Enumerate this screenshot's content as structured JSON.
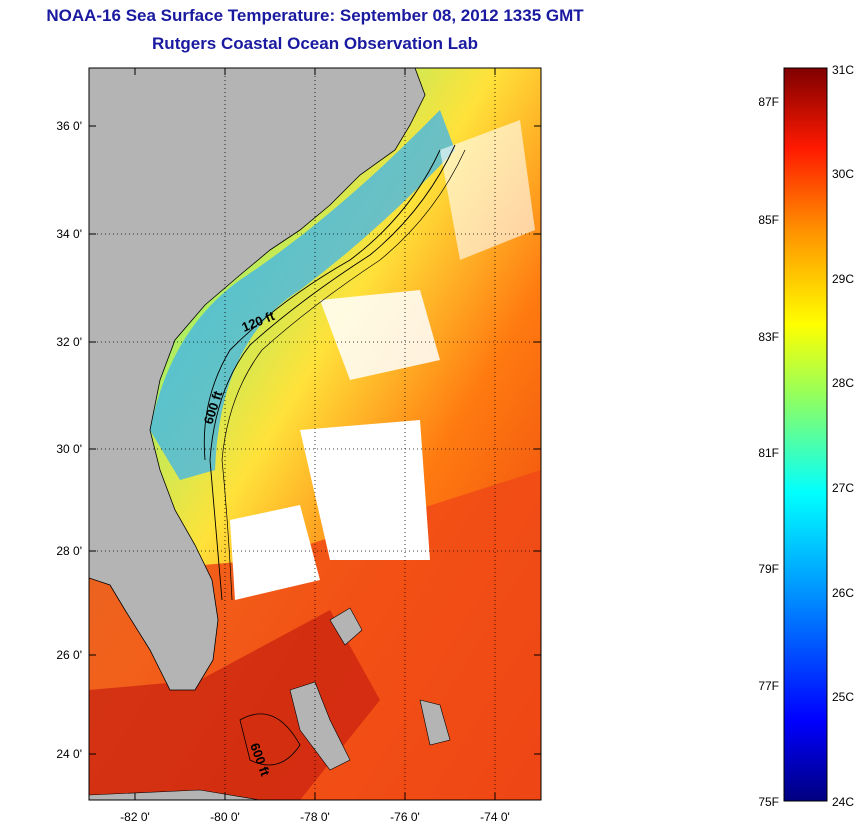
{
  "header": {
    "title": "NOAA-16 Sea Surface Temperature:  September 08, 2012 1335 GMT",
    "subtitle": "Rutgers Coastal Ocean Observation Lab"
  },
  "map": {
    "lat_ticks": [
      "36 0'",
      "34 0'",
      "32 0'",
      "30 0'",
      "28 0'",
      "26 0'",
      "24 0'"
    ],
    "lon_ticks": [
      "-82 0'",
      "-80 0'",
      "-78 0'",
      "-76 0'",
      "-74 0'"
    ],
    "lat_range": [
      23,
      37.2
    ],
    "lon_range": [
      -83,
      -73
    ],
    "contour_labels": [
      "120 ft",
      "600 ft",
      "600 ft"
    ],
    "land_color": "#b4b4b4",
    "cloud_color": "#ffffff"
  },
  "colorbar": {
    "celsius_labels": [
      "31C",
      "30C",
      "29C",
      "28C",
      "27C",
      "26C",
      "25C",
      "24C"
    ],
    "fahrenheit_labels": [
      "87F",
      "85F",
      "83F",
      "81F",
      "79F",
      "77F",
      "75F"
    ],
    "range_c": [
      24,
      31
    ],
    "colors": [
      "#00007f",
      "#0000ff",
      "#007fff",
      "#00ffff",
      "#7fff7f",
      "#ffff00",
      "#ff7f00",
      "#ff0000",
      "#7f0000"
    ]
  }
}
